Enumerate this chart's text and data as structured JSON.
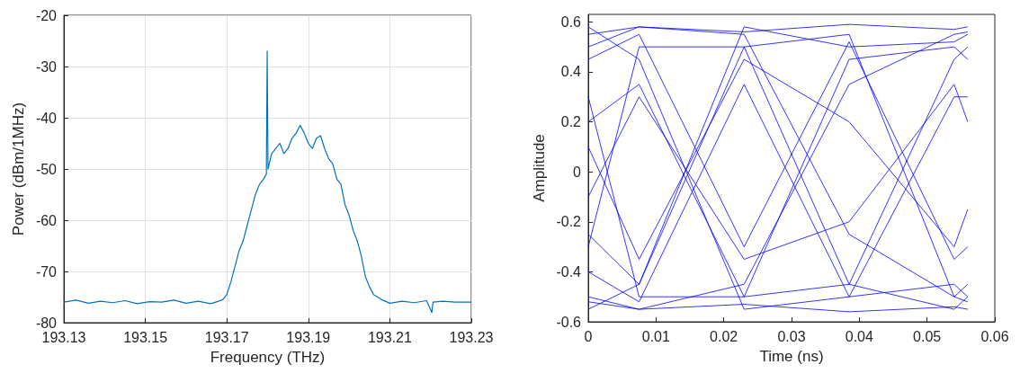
{
  "chart_data": [
    {
      "type": "line",
      "xlabel": "Frequency (THz)",
      "ylabel": "Power (dBm/1MHz)",
      "color": "#0072bd",
      "grid": true,
      "xlim": [
        193.13,
        193.23
      ],
      "ylim": [
        -80,
        -20
      ],
      "xticks": [
        193.13,
        193.15,
        193.17,
        193.19,
        193.21,
        193.23
      ],
      "yticks": [
        -80,
        -70,
        -60,
        -50,
        -40,
        -30,
        -20
      ],
      "x": [
        193.13,
        193.133,
        193.136,
        193.139,
        193.142,
        193.145,
        193.148,
        193.151,
        193.154,
        193.157,
        193.16,
        193.163,
        193.166,
        193.168,
        193.169,
        193.17,
        193.171,
        193.172,
        193.173,
        193.174,
        193.175,
        193.176,
        193.177,
        193.178,
        193.179,
        193.1797,
        193.1799,
        193.1801,
        193.181,
        193.182,
        193.183,
        193.184,
        193.185,
        193.186,
        193.187,
        193.188,
        193.189,
        193.19,
        193.191,
        193.192,
        193.193,
        193.194,
        193.195,
        193.196,
        193.197,
        193.198,
        193.199,
        193.2,
        193.201,
        193.202,
        193.203,
        193.204,
        193.205,
        193.206,
        193.208,
        193.21,
        193.213,
        193.216,
        193.219,
        193.2203,
        193.2206,
        193.223,
        193.226,
        193.23
      ],
      "values": [
        -76,
        -75.6,
        -76.2,
        -75.8,
        -76.1,
        -75.7,
        -76.3,
        -75.9,
        -76,
        -75.6,
        -76.2,
        -75.8,
        -76.3,
        -75.8,
        -75.5,
        -74.5,
        -72,
        -69,
        -66,
        -64,
        -61,
        -58,
        -55,
        -53,
        -52,
        -51,
        -27,
        -50,
        -47,
        -46,
        -45,
        -47,
        -46,
        -44,
        -43,
        -41.5,
        -43,
        -45,
        -46,
        -44,
        -43.5,
        -46,
        -48,
        -49,
        -52,
        -53,
        -57,
        -59,
        -62,
        -64,
        -67,
        -71,
        -73,
        -74.5,
        -75.5,
        -76.2,
        -75.8,
        -76.1,
        -75.7,
        -78,
        -76,
        -75.8,
        -76,
        -76
      ]
    },
    {
      "type": "line",
      "xlabel": "Time (ns)",
      "ylabel": "Amplitude",
      "xlim": [
        0,
        0.06
      ],
      "ylim": [
        -0.6,
        0.63
      ],
      "xticks": [
        0,
        0.01,
        0.02,
        0.03,
        0.04,
        0.05,
        0.06
      ],
      "yticks": [
        -0.6,
        -0.4,
        -0.2,
        0,
        0.2,
        0.4,
        0.6
      ],
      "x": [
        0,
        0.0075,
        0.023,
        0.0385,
        0.054,
        0.056
      ],
      "series": [
        {
          "color": "#0000ff",
          "values": [
            0.55,
            0.58,
            0.56,
            0.59,
            0.57,
            0.58
          ]
        },
        {
          "color": "#0000ff",
          "values": [
            -0.52,
            -0.55,
            -0.53,
            -0.56,
            -0.54,
            -0.55
          ]
        },
        {
          "color": "#0000ff",
          "values": [
            0.45,
            0.55,
            -0.3,
            0.52,
            -0.35,
            -0.3
          ]
        },
        {
          "color": "#0000ff",
          "values": [
            -0.4,
            -0.52,
            0.35,
            -0.5,
            0.3,
            0.3
          ]
        },
        {
          "color": "#0000ff",
          "values": [
            0.2,
            0.35,
            -0.5,
            -0.45,
            0.45,
            0.5
          ]
        },
        {
          "color": "#0000ff",
          "values": [
            -0.25,
            -0.45,
            0.5,
            0.55,
            -0.5,
            -0.45
          ]
        },
        {
          "color": "#0000ff",
          "values": [
            0.5,
            0.58,
            0.55,
            -0.25,
            -0.5,
            -0.52
          ]
        },
        {
          "color": "#0000ff",
          "values": [
            -0.5,
            -0.55,
            -0.45,
            0.35,
            0.55,
            0.56
          ]
        },
        {
          "color": "#0000ff",
          "values": [
            0.1,
            -0.35,
            0.45,
            0.2,
            -0.3,
            -0.15
          ]
        },
        {
          "color": "#0000ff",
          "values": [
            -0.1,
            0.3,
            -0.35,
            -0.2,
            0.35,
            0.2
          ]
        },
        {
          "color": "#0000ff",
          "values": [
            0.58,
            0.45,
            -0.55,
            -0.5,
            -0.45,
            -0.5
          ]
        },
        {
          "color": "#0000ff",
          "values": [
            -0.55,
            -0.45,
            0.58,
            0.5,
            0.52,
            0.55
          ]
        },
        {
          "color": "#0000ff",
          "values": [
            0.3,
            -0.5,
            -0.5,
            0.45,
            0.5,
            0.45
          ]
        },
        {
          "color": "#0000ff",
          "values": [
            -0.3,
            0.5,
            0.5,
            -0.45,
            -0.55,
            -0.5
          ]
        }
      ]
    }
  ]
}
